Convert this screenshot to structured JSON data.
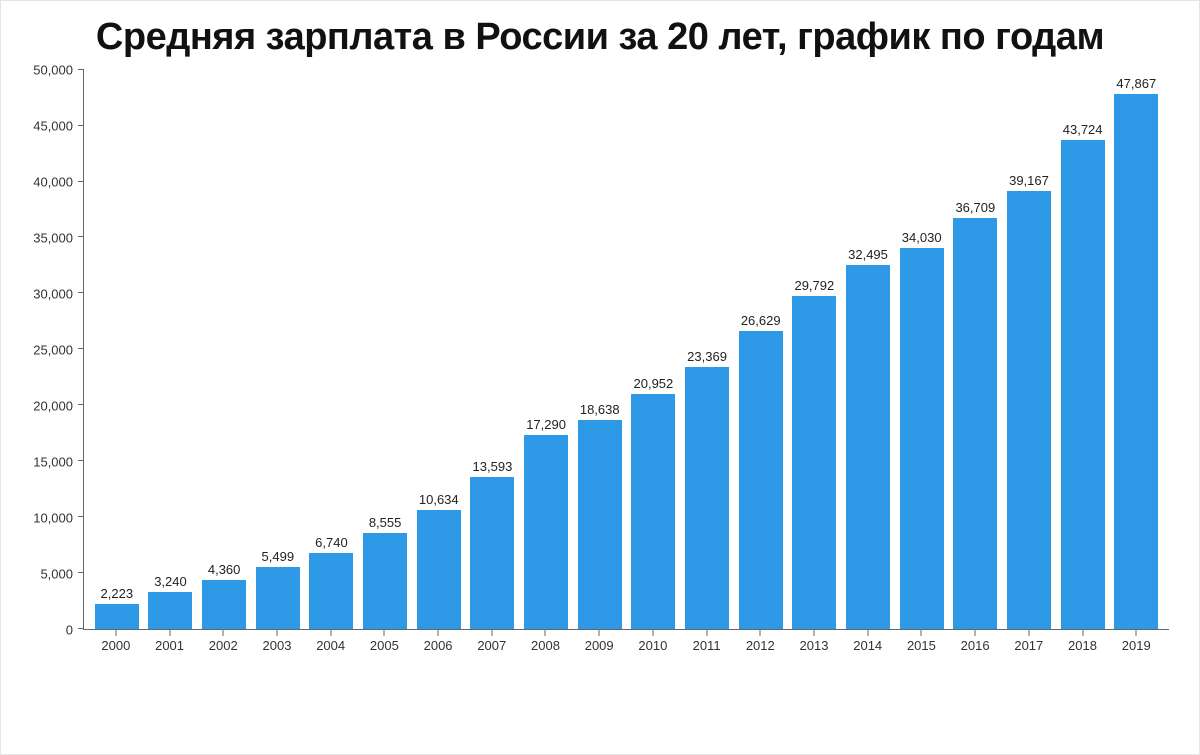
{
  "title": "Средняя зарплата в России за 20 лет, график по годам",
  "title_fontsize": 38,
  "title_color": "#111111",
  "chart": {
    "type": "bar",
    "background_color": "#ffffff",
    "border_color": "#e5e5e5",
    "axis_color": "#666666",
    "bar_color": "#2e99e6",
    "bar_width": 0.82,
    "label_fontsize": 13,
    "label_color": "#222222",
    "tick_fontsize": 13,
    "tick_color": "#333333",
    "categories": [
      "2000",
      "2001",
      "2002",
      "2003",
      "2004",
      "2005",
      "2006",
      "2007",
      "2008",
      "2009",
      "2010",
      "2011",
      "2012",
      "2013",
      "2014",
      "2015",
      "2016",
      "2017",
      "2018",
      "2019"
    ],
    "values": [
      2223,
      3240,
      4360,
      5499,
      6740,
      8555,
      10634,
      13593,
      17290,
      18638,
      20952,
      23369,
      26629,
      29792,
      32495,
      34030,
      36709,
      39167,
      43724,
      47867
    ],
    "value_labels": [
      "2,223",
      "3,240",
      "4,360",
      "5,499",
      "6,740",
      "8,555",
      "10,634",
      "13,593",
      "17,290",
      "18,638",
      "20,952",
      "23,369",
      "26,629",
      "29,792",
      "32,495",
      "34,030",
      "36,709",
      "39,167",
      "43,724",
      "47,867"
    ],
    "ylim": [
      0,
      50000
    ],
    "ytick_step": 5000,
    "ytick_labels": [
      "0",
      "5,000",
      "10,000",
      "15,000",
      "20,000",
      "25,000",
      "30,000",
      "35,000",
      "40,000",
      "45,000",
      "50,000"
    ]
  }
}
